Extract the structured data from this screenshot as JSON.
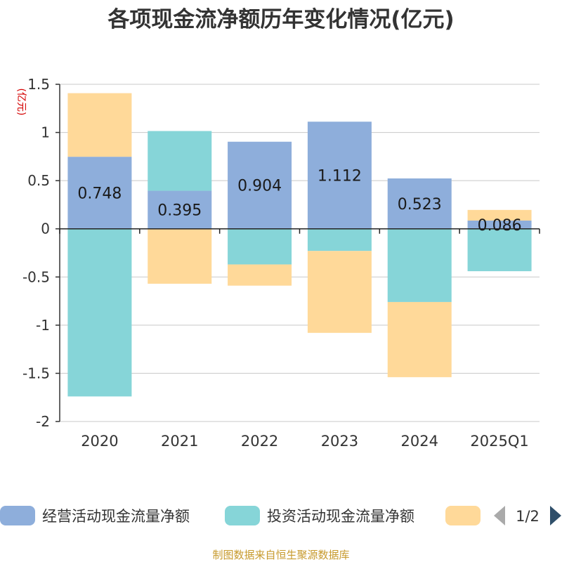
{
  "chart_data": {
    "type": "bar",
    "stacked": true,
    "title": "各项现金流净额历年变化情况(亿元)",
    "ylabel": "(亿元)",
    "ylim": [
      -2,
      1.5
    ],
    "yticks": [
      1.5,
      1,
      0.5,
      0,
      -0.5,
      -1,
      -1.5,
      -2
    ],
    "ytick_labels": [
      "1.5",
      "1",
      "0.5",
      "0",
      "-0.5",
      "-1",
      "-1.5",
      "-2"
    ],
    "grid": true,
    "categories": [
      "2020",
      "2021",
      "2022",
      "2023",
      "2024",
      "2025Q1"
    ],
    "series": [
      {
        "name": "经营活动现金流量净额",
        "color": "#8eaedb",
        "values": [
          0.748,
          0.395,
          0.904,
          1.112,
          0.523,
          0.086
        ],
        "labels": [
          "0.748",
          "0.395",
          "0.904",
          "1.112",
          "0.523",
          "0.086"
        ]
      },
      {
        "name": "投资活动现金流量净额",
        "color": "#86d5d8",
        "values": [
          -1.74,
          0.62,
          -0.37,
          -0.23,
          -0.76,
          -0.44
        ]
      },
      {
        "name": "",
        "color": "#ffd999",
        "values": [
          0.66,
          -0.57,
          -0.22,
          -0.85,
          -0.78,
          0.11
        ]
      }
    ],
    "legend": {
      "position": "bottom",
      "page": "1/2"
    }
  },
  "source": "制图数据来自恒生聚源数据库"
}
